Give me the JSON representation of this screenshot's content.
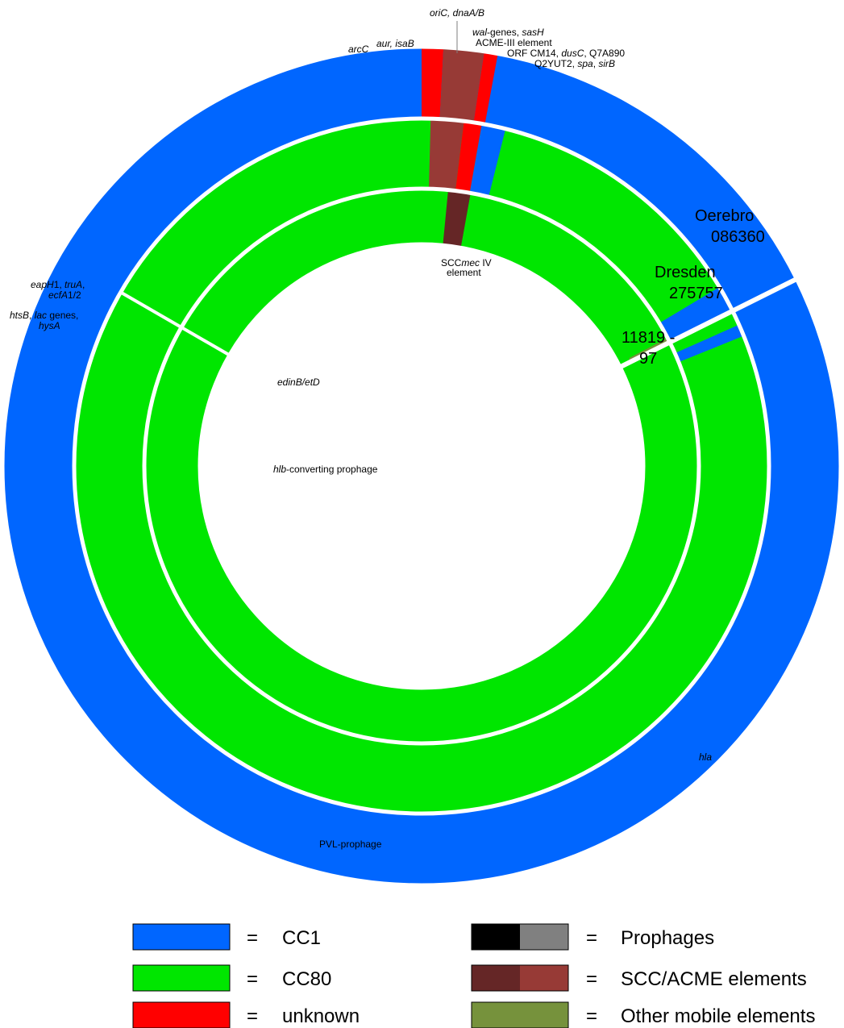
{
  "colors": {
    "cc1": "#0066ff",
    "cc80": "#00e600",
    "unknown": "#ff0000",
    "prophage_black": "#000000",
    "prophage_grey": "#808080",
    "scc_dark": "#652626",
    "acme_red": "#973a36",
    "other_mobile": "#76923c"
  },
  "rings": [
    {
      "name_line1": "Oerebro",
      "name_line2": "086360"
    },
    {
      "name_line1": "Dresden",
      "name_line2": "275757"
    },
    {
      "name_line1": "11819 -",
      "name_line2": "97"
    }
  ],
  "annotations": {
    "oric": "oriC, dnaA/B",
    "arcc": "arcC",
    "aur": "aur, isaB",
    "wal_a": "wal",
    "wal_b": "-genes, ",
    "wal_c": "sasH",
    "acme": "ACME-III element",
    "orf_a": "ORF CM14, ",
    "orf_b": "dusC",
    "orf_c": ", Q7A890",
    "q2_a": "Q2YUT2, ",
    "q2_b": "spa",
    "q2_c": ", ",
    "q2_d": "sirB",
    "eap_a": "eapH",
    "eap_b": "1, ",
    "eap_c": "truA",
    "eap_d": ",",
    "ecf_a": "ecfA",
    "ecf_b": "1/2",
    "hts_a": "htsB",
    "hts_b": ", ",
    "hts_c": "lac",
    "hts_d": " genes,",
    "hys": "hysA",
    "scc_a": "SCC",
    "scc_b": "mec",
    "scc_c": " IV",
    "scc_d": "element",
    "edin": "edinB/etD",
    "hlb_a": "hlb",
    "hlb_b": "-converting prophage",
    "hla": "hla",
    "pvl": "PVL-prophage"
  },
  "legend": [
    {
      "eq": "=",
      "label": "CC1"
    },
    {
      "eq": "=",
      "label": "CC80"
    },
    {
      "eq": "=",
      "label": "unknown"
    },
    {
      "eq": "=",
      "label": "Prophages"
    },
    {
      "eq": "=",
      "label": "SCC/ACME elements"
    },
    {
      "eq": "=",
      "label": "Other mobile elements"
    }
  ]
}
